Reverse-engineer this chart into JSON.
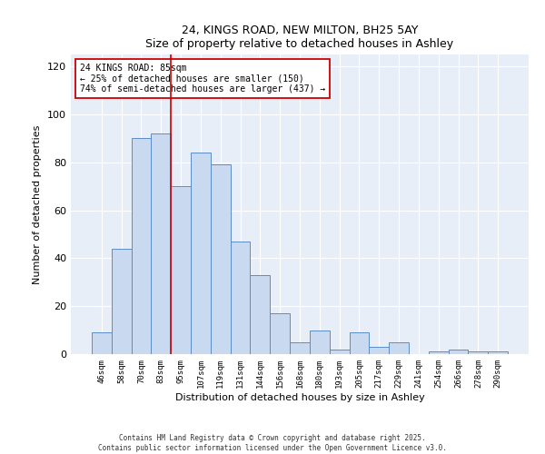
{
  "title1": "24, KINGS ROAD, NEW MILTON, BH25 5AY",
  "title2": "Size of property relative to detached houses in Ashley",
  "xlabel": "Distribution of detached houses by size in Ashley",
  "ylabel": "Number of detached properties",
  "categories": [
    "46sqm",
    "58sqm",
    "70sqm",
    "83sqm",
    "95sqm",
    "107sqm",
    "119sqm",
    "131sqm",
    "144sqm",
    "156sqm",
    "168sqm",
    "180sqm",
    "193sqm",
    "205sqm",
    "217sqm",
    "229sqm",
    "241sqm",
    "254sqm",
    "266sqm",
    "278sqm",
    "290sqm"
  ],
  "values": [
    9,
    44,
    90,
    92,
    70,
    84,
    79,
    47,
    33,
    17,
    5,
    10,
    2,
    9,
    3,
    5,
    0,
    1,
    2,
    1,
    1
  ],
  "bar_color": "#c9d9ef",
  "bar_edge_color": "#5b8dc8",
  "vline_x": 3.5,
  "vline_color": "#cc0000",
  "annotation_title": "24 KINGS ROAD: 85sqm",
  "annotation_line1": "← 25% of detached houses are smaller (150)",
  "annotation_line2": "74% of semi-detached houses are larger (437) →",
  "ylim": [
    0,
    125
  ],
  "yticks": [
    0,
    20,
    40,
    60,
    80,
    100,
    120
  ],
  "bg_color": "#e8eef8",
  "footer1": "Contains HM Land Registry data © Crown copyright and database right 2025.",
  "footer2": "Contains public sector information licensed under the Open Government Licence v3.0."
}
